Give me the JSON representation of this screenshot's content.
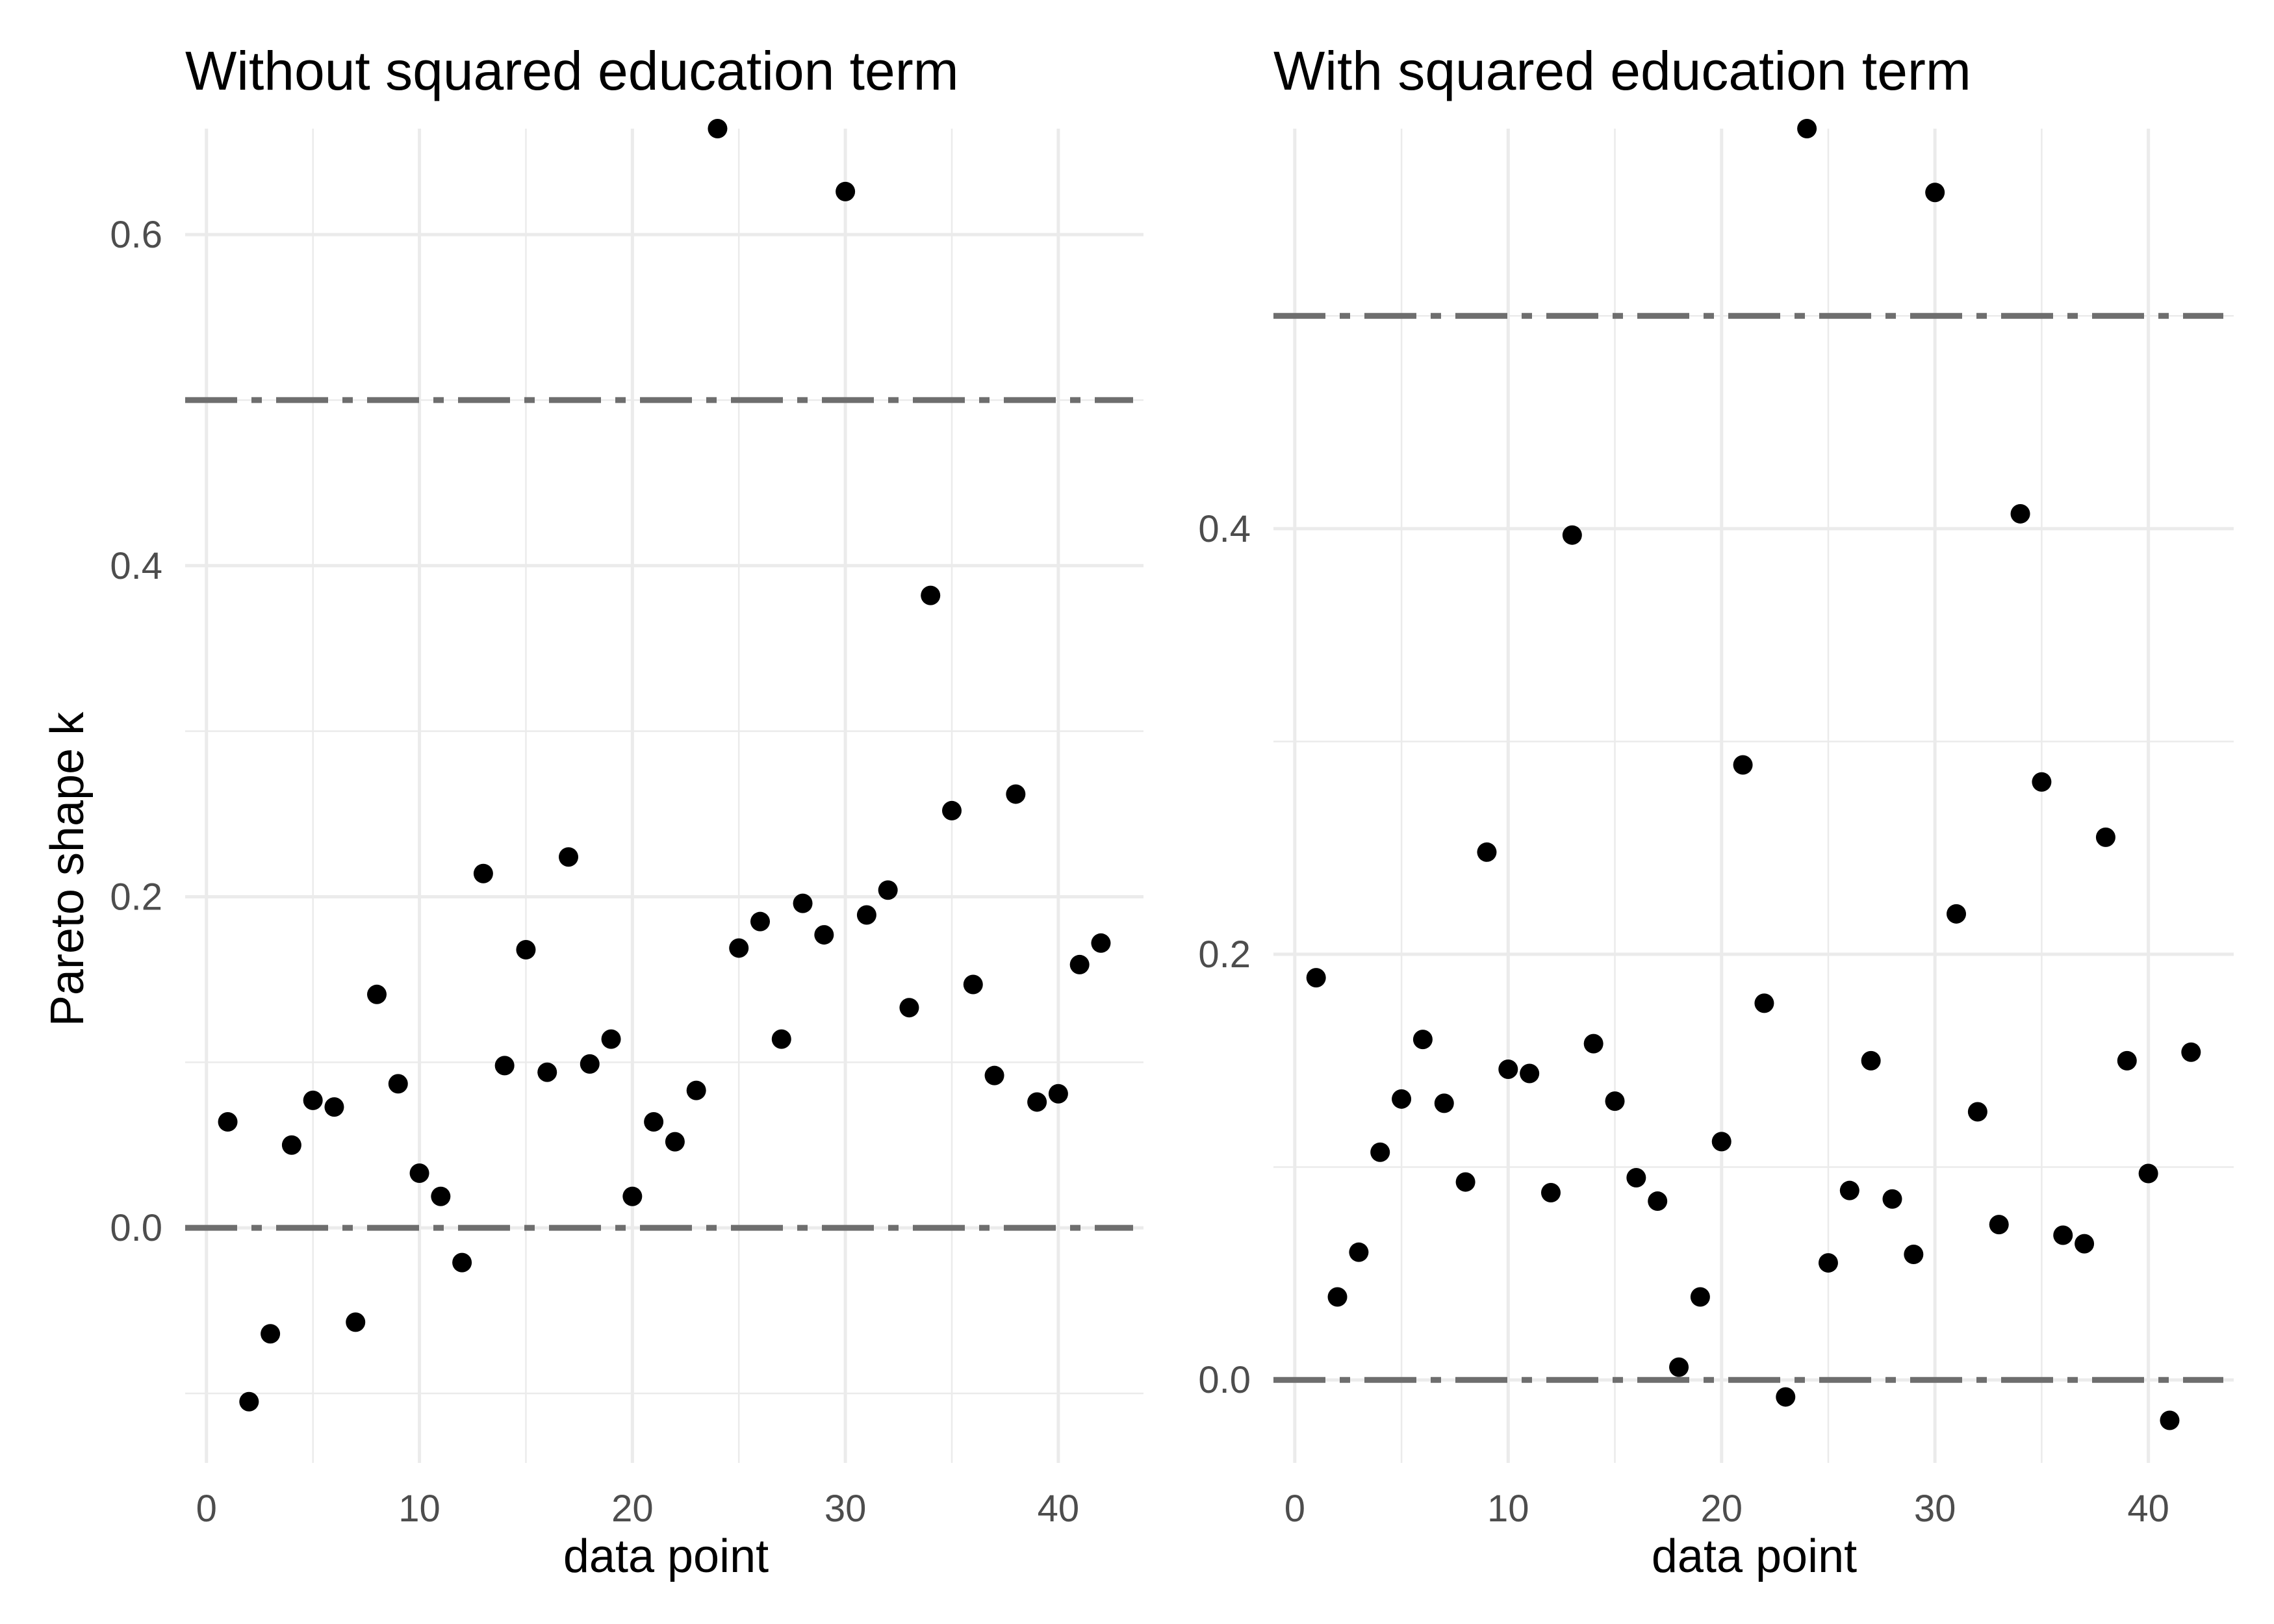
{
  "chart_data": [
    {
      "type": "scatter",
      "title": "Without squared education term",
      "xlabel": "data point",
      "ylabel": "Pareto shape k",
      "xlim": [
        -1,
        44
      ],
      "ylim": [
        -0.142,
        0.664
      ],
      "x_ticks": [
        0,
        10,
        20,
        30,
        40
      ],
      "x_tick_labels": [
        "0",
        "10",
        "20",
        "30",
        "40"
      ],
      "y_ticks": [
        0.0,
        0.2,
        0.4,
        0.6
      ],
      "y_tick_labels": [
        "0.0",
        "0.2",
        "0.4",
        "0.6"
      ],
      "y_minor_ticks": [
        -0.1,
        0.1,
        0.3,
        0.5
      ],
      "x_minor_ticks": [
        5,
        15,
        25,
        35
      ],
      "grid": true,
      "reference_lines": [
        0.0,
        0.5
      ],
      "x": [
        1,
        2,
        3,
        4,
        5,
        6,
        7,
        8,
        9,
        10,
        11,
        12,
        13,
        14,
        15,
        16,
        17,
        18,
        19,
        20,
        21,
        22,
        23,
        24,
        25,
        26,
        27,
        28,
        29,
        30,
        31,
        32,
        33,
        34,
        35,
        36,
        37,
        38,
        39,
        40,
        41,
        42
      ],
      "y": [
        0.064,
        -0.105,
        -0.064,
        0.05,
        0.077,
        0.073,
        -0.057,
        0.141,
        0.087,
        0.033,
        0.019,
        -0.021,
        0.214,
        0.098,
        0.168,
        0.094,
        0.224,
        0.099,
        0.114,
        0.019,
        0.064,
        0.052,
        0.083,
        0.664,
        0.169,
        0.185,
        0.114,
        0.196,
        0.177,
        0.626,
        0.189,
        0.204,
        0.133,
        0.382,
        0.252,
        0.147,
        0.092,
        0.262,
        0.076,
        0.081,
        0.159,
        0.172
      ]
    },
    {
      "type": "scatter",
      "title": "With squared education term",
      "xlabel": "data point",
      "ylabel": "",
      "xlim": [
        -1,
        44
      ],
      "ylim": [
        -0.039,
        0.588
      ],
      "x_ticks": [
        0,
        10,
        20,
        30,
        40
      ],
      "x_tick_labels": [
        "0",
        "10",
        "20",
        "30",
        "40"
      ],
      "y_ticks": [
        0.0,
        0.2,
        0.4
      ],
      "y_tick_labels": [
        "0.0",
        "0.2",
        "0.4"
      ],
      "y_minor_ticks": [
        0.1,
        0.3,
        0.5
      ],
      "x_minor_ticks": [
        5,
        15,
        25,
        35
      ],
      "grid": true,
      "reference_lines": [
        0.0,
        0.5
      ],
      "x": [
        1,
        2,
        3,
        4,
        5,
        6,
        7,
        8,
        9,
        10,
        11,
        12,
        13,
        14,
        15,
        16,
        17,
        18,
        19,
        20,
        21,
        22,
        23,
        24,
        25,
        26,
        27,
        28,
        29,
        30,
        31,
        32,
        33,
        34,
        35,
        36,
        37,
        38,
        39,
        40,
        41,
        42
      ],
      "y": [
        0.189,
        0.039,
        0.06,
        0.107,
        0.132,
        0.16,
        0.13,
        0.093,
        0.248,
        0.146,
        0.144,
        0.088,
        0.397,
        0.158,
        0.131,
        0.095,
        0.084,
        0.006,
        0.039,
        0.112,
        0.289,
        0.177,
        -0.008,
        0.588,
        0.055,
        0.089,
        0.15,
        0.085,
        0.059,
        0.558,
        0.219,
        0.126,
        0.073,
        0.407,
        0.281,
        0.068,
        0.064,
        0.255,
        0.15,
        0.097,
        -0.019,
        0.154
      ]
    }
  ]
}
